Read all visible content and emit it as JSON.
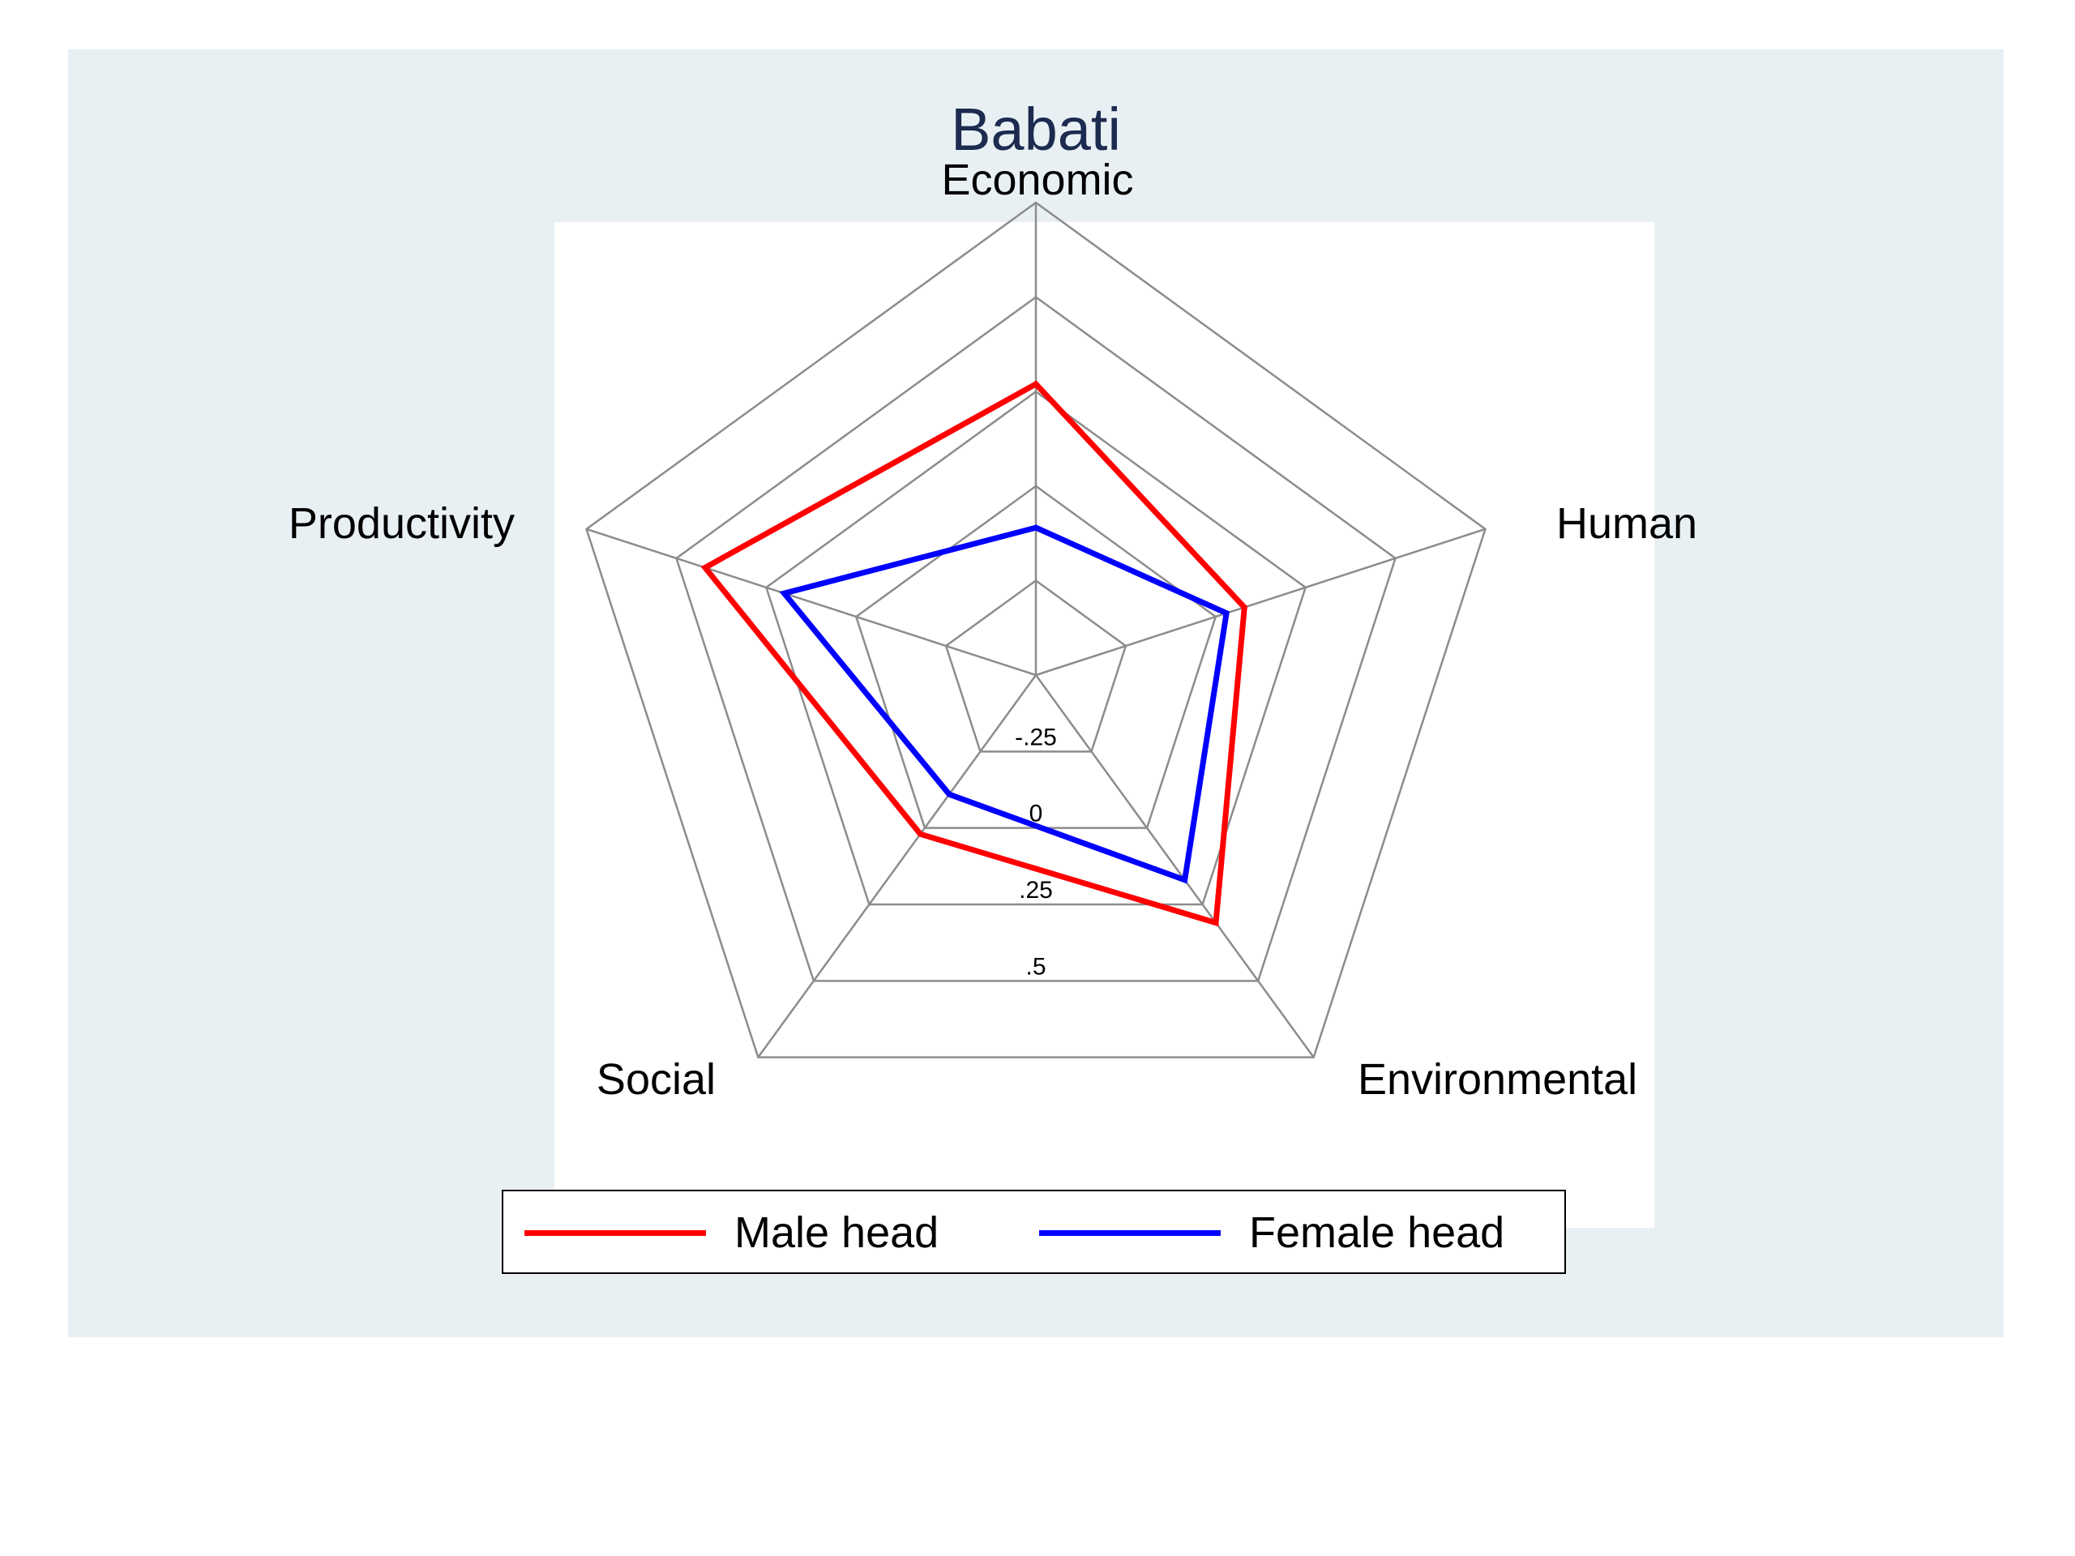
{
  "chart_data": {
    "type": "radar",
    "title": "Babati",
    "axes": [
      "Economic",
      "Human",
      "Environmental",
      "Social",
      "Productivity"
    ],
    "rlim": [
      -0.5,
      0.75
    ],
    "rticks": [
      -0.25,
      0,
      0.25,
      0.5
    ],
    "rtick_labels": [
      "-.25",
      "0",
      ".25",
      ".5"
    ],
    "grid": true,
    "legend_position": "bottom",
    "series": [
      {
        "name": "Male head",
        "color": "#ff0000",
        "values": [
          0.27,
          0.08,
          0.31,
          0.02,
          0.42
        ]
      },
      {
        "name": "Female head",
        "color": "#0000ff",
        "values": [
          -0.11,
          0.03,
          0.17,
          -0.11,
          0.2
        ]
      }
    ]
  },
  "colors": {
    "figure_background": "#e9f0f4",
    "plot_background": "#ffffff",
    "grid": "#8c8c8c",
    "title": "#1c2b4f"
  }
}
